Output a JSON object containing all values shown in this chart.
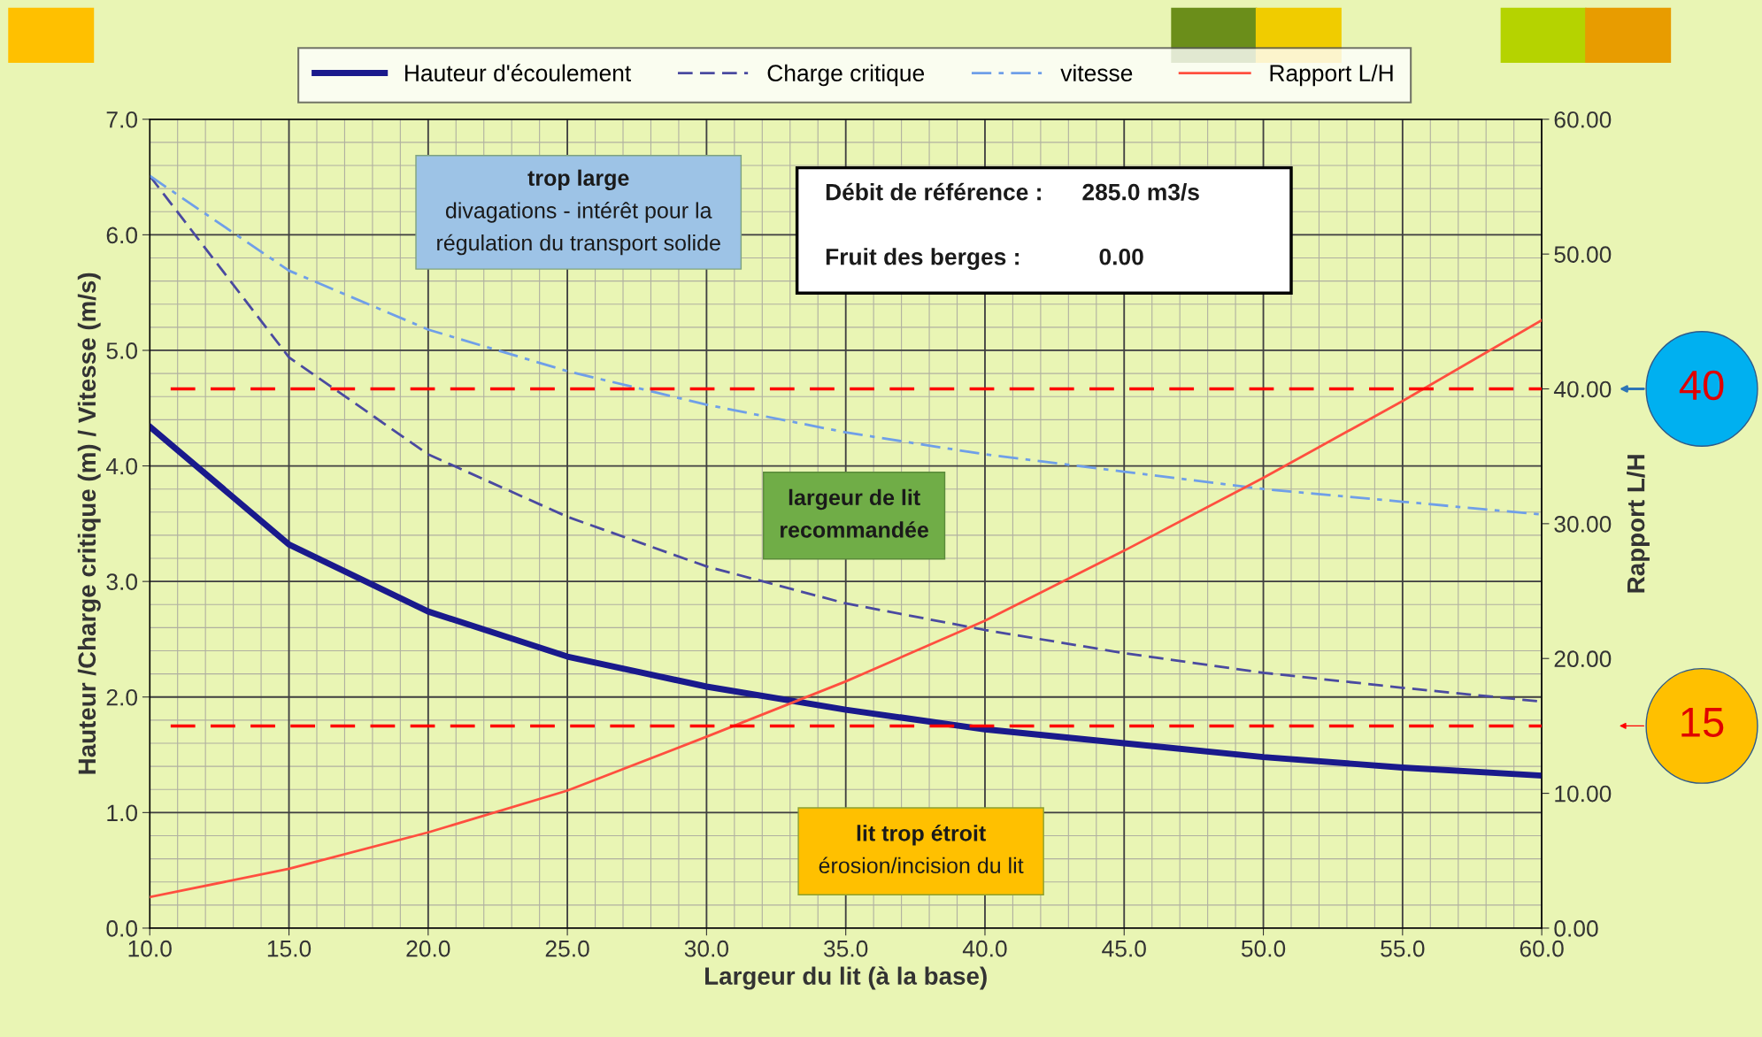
{
  "chart_data": {
    "type": "line",
    "xlabel": "Largeur du lit (à la base)",
    "ylabel": "Hauteur /Charge critique (m) / Vitesse (m/s)",
    "y2label": "Rapport L/H",
    "x": [
      10,
      15,
      20,
      25,
      30,
      35,
      40,
      45,
      50,
      55,
      60
    ],
    "series": [
      {
        "name": "Hauteur d'écoulement",
        "color": "#1a1a8c",
        "line_style": "solid",
        "values": [
          4.34,
          3.32,
          2.74,
          2.35,
          2.09,
          1.89,
          1.72,
          1.6,
          1.48,
          1.39,
          1.32
        ]
      },
      {
        "name": "Charge critique",
        "color": "#4a4aa0",
        "line_style": "dashed",
        "values": [
          6.51,
          4.94,
          4.1,
          3.56,
          3.13,
          2.81,
          2.58,
          2.38,
          2.21,
          2.08,
          1.96
        ]
      },
      {
        "name": "vitesse",
        "color": "#6f9fe8",
        "line_style": "dashdot",
        "values": [
          6.51,
          5.69,
          5.18,
          4.82,
          4.53,
          4.29,
          4.1,
          3.95,
          3.8,
          3.69,
          3.58
        ]
      },
      {
        "name": "Rapport L/H",
        "color": "#ff4f3f",
        "line_style": "solid",
        "axis": "y2",
        "values": [
          2.3,
          4.4,
          7.1,
          10.2,
          14.2,
          18.3,
          22.8,
          28.0,
          33.4,
          39.1,
          45.1
        ]
      }
    ],
    "xlim": [
      10,
      60
    ],
    "ylim": [
      0,
      7
    ],
    "y2lim": [
      0,
      60
    ],
    "xticks": [
      {
        "value": 10,
        "label": "10.0"
      },
      {
        "value": 15,
        "label": "15.0"
      },
      {
        "value": 20,
        "label": "20.0"
      },
      {
        "value": 25,
        "label": "25.0"
      },
      {
        "value": 30,
        "label": "30.0"
      },
      {
        "value": 35,
        "label": "35.0"
      },
      {
        "value": 40,
        "label": "40.0"
      },
      {
        "value": 45,
        "label": "45.0"
      },
      {
        "value": 50,
        "label": "50.0"
      },
      {
        "value": 55,
        "label": "55.0"
      },
      {
        "value": 60,
        "label": "60.0"
      }
    ],
    "yticks": [
      {
        "value": 0,
        "label": "0.0"
      },
      {
        "value": 1,
        "label": "1.0"
      },
      {
        "value": 2,
        "label": "2.0"
      },
      {
        "value": 3,
        "label": "3.0"
      },
      {
        "value": 4,
        "label": "4.0"
      },
      {
        "value": 5,
        "label": "5.0"
      },
      {
        "value": 6,
        "label": "6.0"
      },
      {
        "value": 7,
        "label": "7.0"
      }
    ],
    "y2ticks": [
      {
        "value": 0,
        "label": "0.00"
      },
      {
        "value": 10,
        "label": "10.00"
      },
      {
        "value": 20,
        "label": "20.00"
      },
      {
        "value": 30,
        "label": "30.00"
      },
      {
        "value": 40,
        "label": "40.00"
      },
      {
        "value": 50,
        "label": "50.00"
      },
      {
        "value": 60,
        "label": "60.00"
      }
    ],
    "ref_lines": [
      {
        "axis": "y2",
        "value": 40,
        "label": "40",
        "color": "#ff0000",
        "line_style": "dashed"
      },
      {
        "axis": "y2",
        "value": 15,
        "label": "15",
        "color": "#ff0000",
        "line_style": "dashed"
      }
    ],
    "annotations": [
      "trop large\ndivagations - intérêt pour la\nrégulation du transport solide",
      "largeur de lit\nrecommandée",
      "lit trop étroit\nérosion/incision du lit",
      "Débit de référence :      285.0 m3/s",
      "Fruit des berges :            0.00"
    ],
    "grid": true,
    "legend": "top",
    "marker": "none"
  }
}
